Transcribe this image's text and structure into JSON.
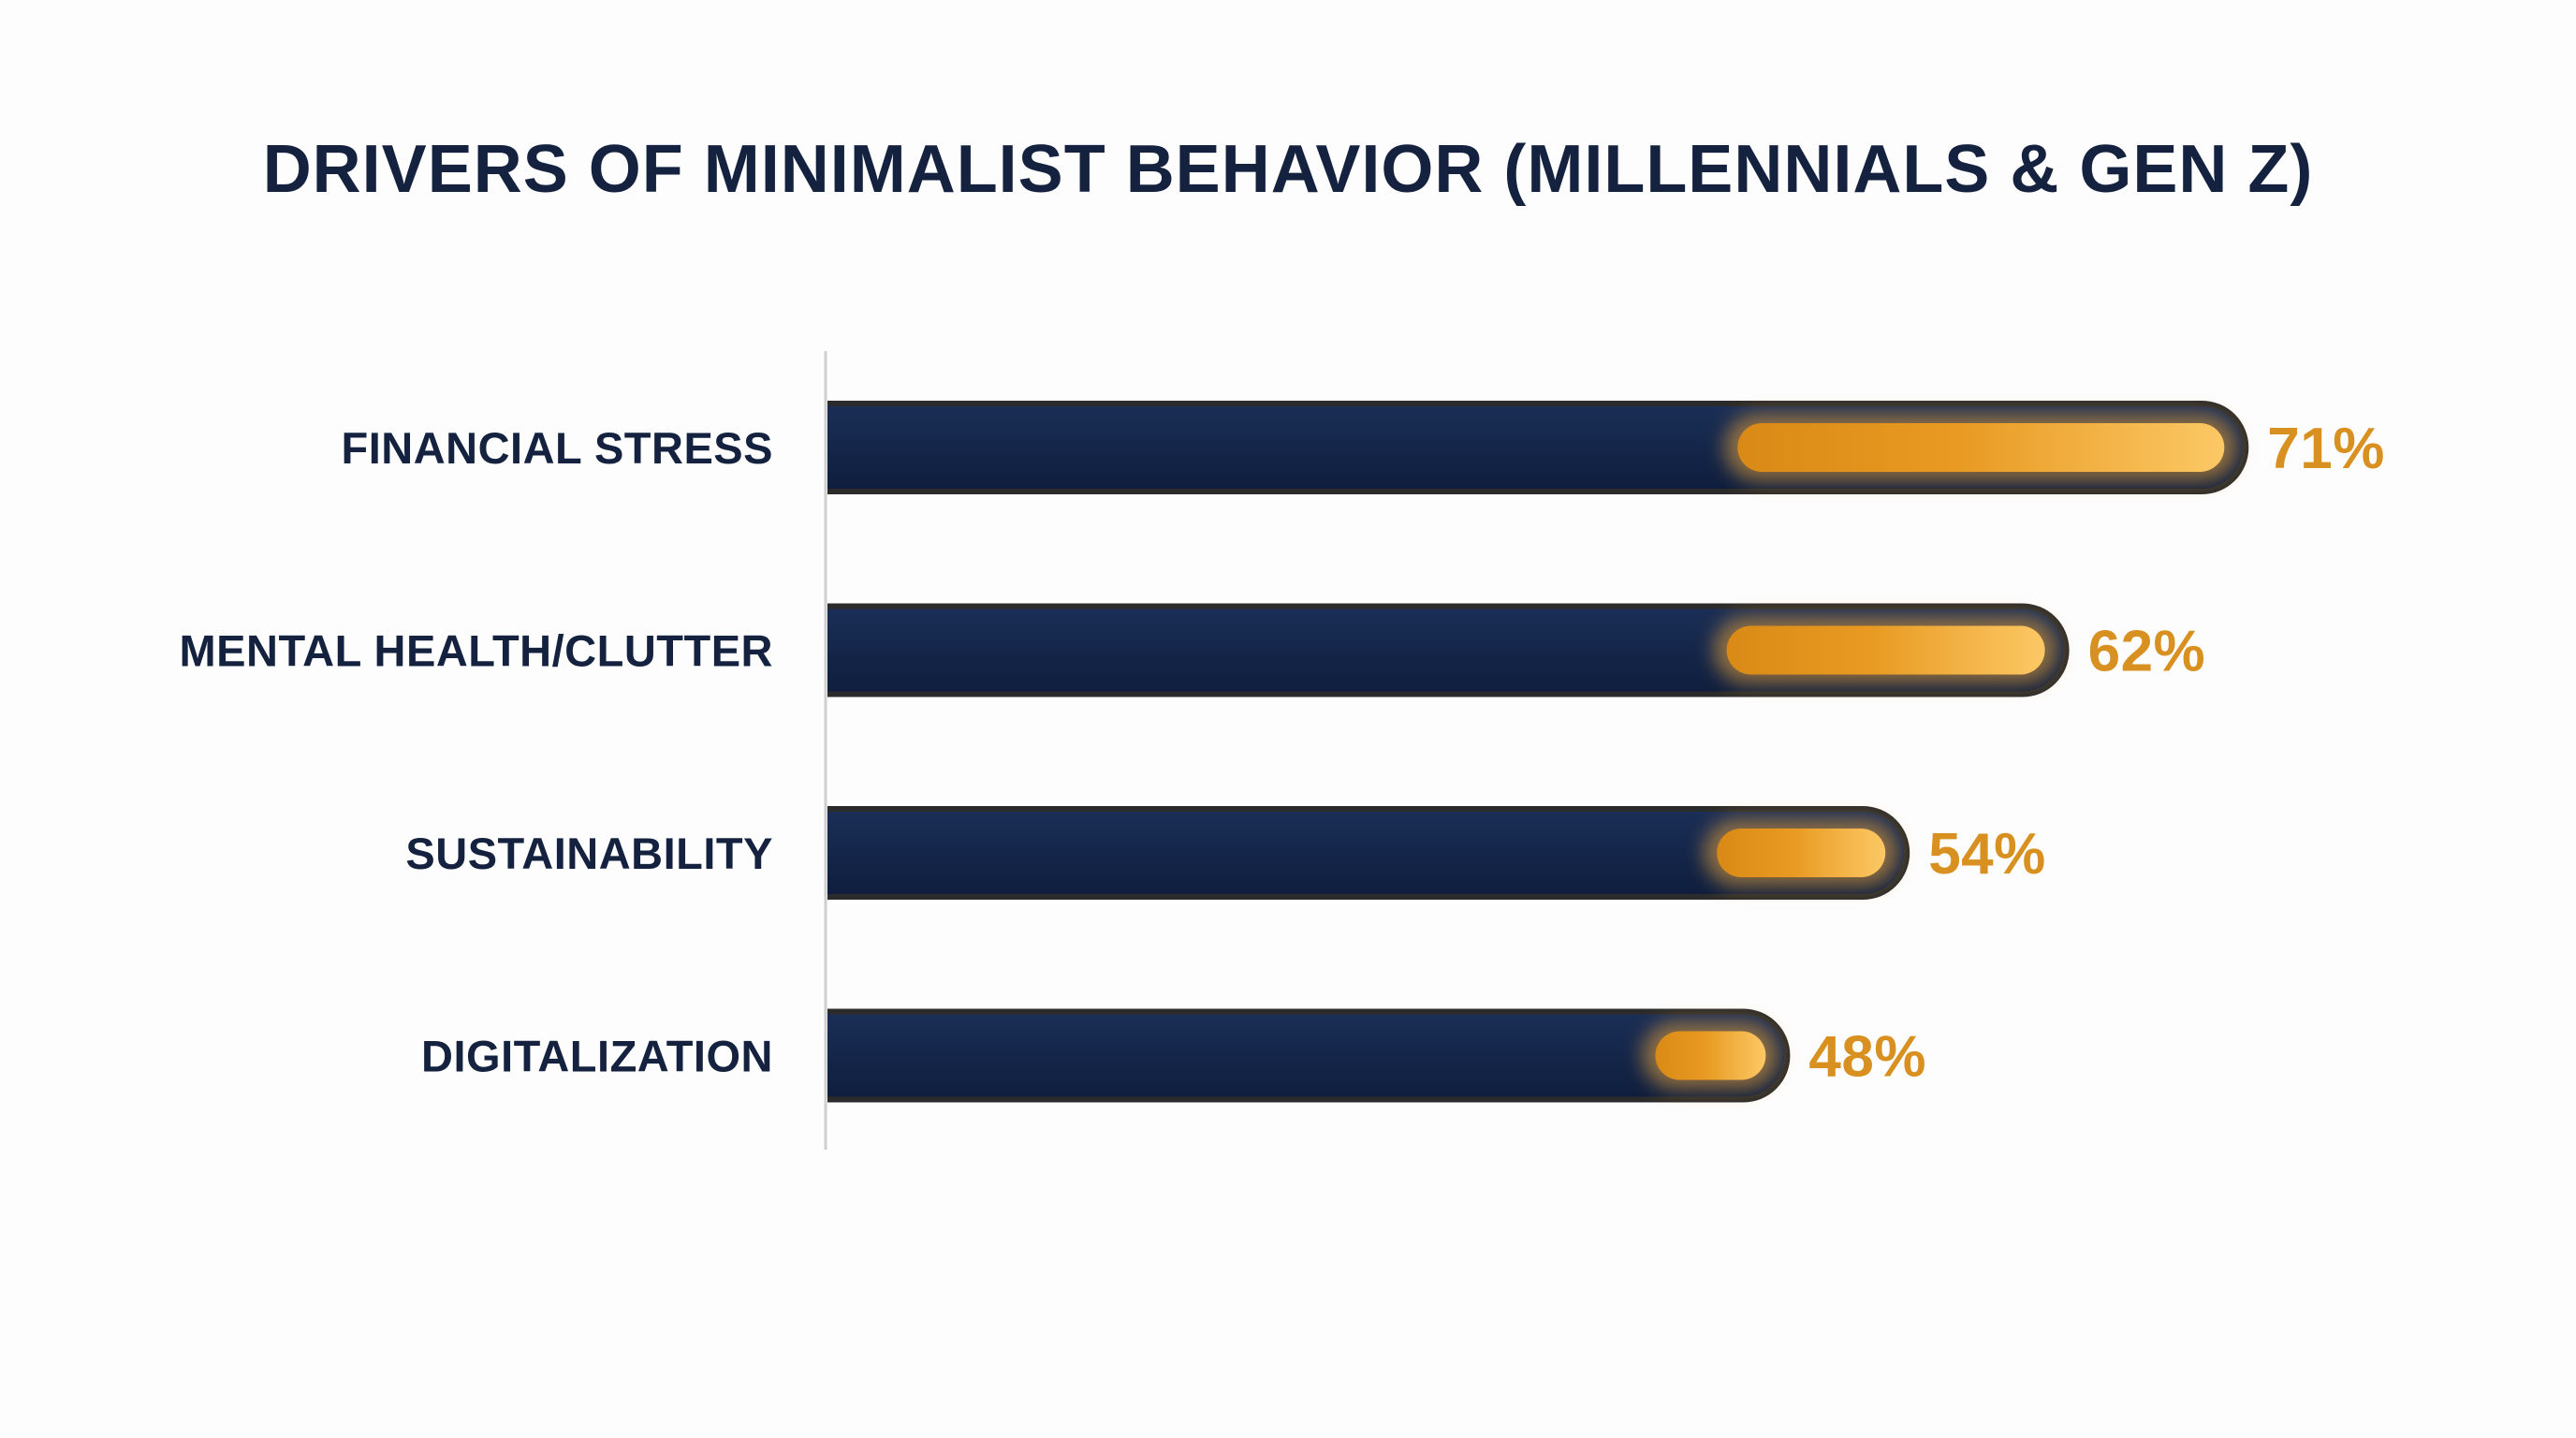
{
  "chart_data": {
    "type": "bar",
    "orientation": "horizontal",
    "title": "DRIVERS OF MINIMALIST BEHAVIOR (MILLENNIALS & GEN Z)",
    "categories": [
      "FINANCIAL STRESS",
      "MENTAL HEALTH/CLUTTER",
      "SUSTAINABILITY",
      "DIGITALIZATION"
    ],
    "values": [
      71,
      62,
      54,
      48
    ],
    "value_labels": [
      "71%",
      "62%",
      "54%",
      "48%"
    ],
    "unit": "%",
    "xlim": [
      0,
      100
    ],
    "grid": false,
    "legend": "none",
    "colors": {
      "bar": "#14264a",
      "bar_rim": "#2b2b2b",
      "highlight": "#f2a93b",
      "highlight_dark": "#d98a16",
      "value_text": "#d89020",
      "axis_line": "#cfcfcf",
      "text": "#14223f"
    }
  }
}
